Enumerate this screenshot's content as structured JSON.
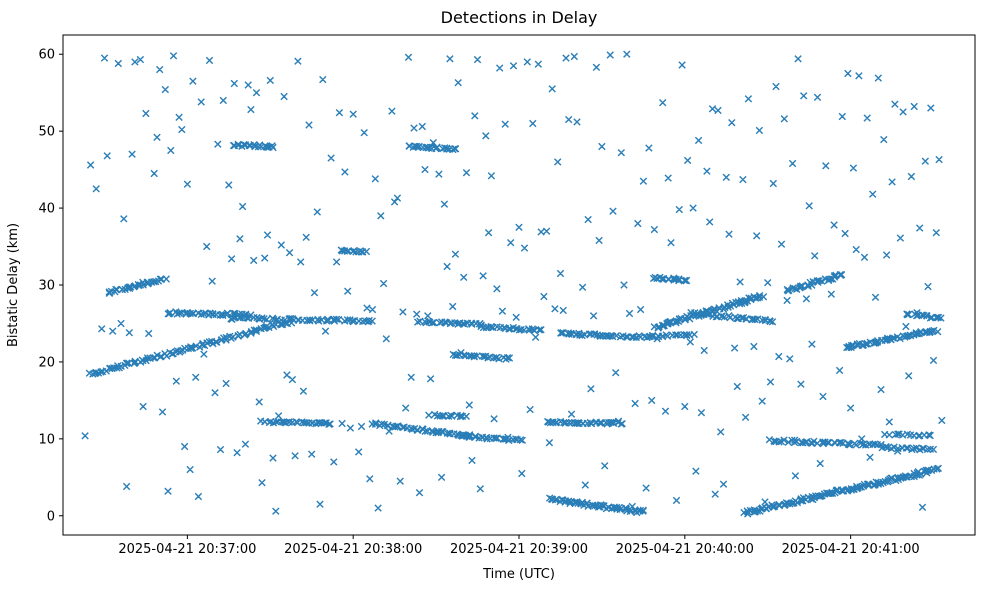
{
  "figure": {
    "title": "Detections in Delay",
    "xlabel": "Time (UTC)",
    "ylabel": "Bistatic Delay (km)"
  },
  "chart_data": {
    "type": "scatter",
    "marker": "x",
    "marker_color": "#1f77b4",
    "title": "Detections in Delay",
    "xlabel": "Time (UTC)",
    "ylabel": "Bistatic Delay (km)",
    "grid": false,
    "legend": null,
    "x_axis": {
      "unit": "seconds relative to 2025-04-21 20:36:15 UTC",
      "lim": [
        0,
        330
      ],
      "ticks": [
        45,
        105,
        165,
        225,
        285
      ],
      "tick_labels": [
        "2025-04-21 20:37:00",
        "2025-04-21 20:38:00",
        "2025-04-21 20:39:00",
        "2025-04-21 20:40:00",
        "2025-04-21 20:41:00"
      ]
    },
    "y_axis": {
      "lim": [
        -2.5,
        62.5
      ],
      "ticks": [
        0,
        10,
        20,
        30,
        40,
        50,
        60
      ]
    },
    "tracks": [
      {
        "t0": 10,
        "t1": 82,
        "d0": 18.4,
        "d1": 25.2,
        "n": 95,
        "w": 0.18
      },
      {
        "t0": 16,
        "t1": 37,
        "d0": 29.0,
        "d1": 30.9,
        "n": 32,
        "w": 0.15
      },
      {
        "t0": 38,
        "t1": 68,
        "d0": 26.4,
        "d1": 26.1,
        "n": 40,
        "w": 0.18
      },
      {
        "t0": 60,
        "t1": 112,
        "d0": 25.7,
        "d1": 25.3,
        "n": 55,
        "w": 0.15
      },
      {
        "t0": 72,
        "t1": 97,
        "d0": 12.2,
        "d1": 12.0,
        "n": 32,
        "w": 0.12
      },
      {
        "t0": 100,
        "t1": 110,
        "d0": 34.5,
        "d1": 34.3,
        "n": 12,
        "w": 0.1
      },
      {
        "t0": 62,
        "t1": 76,
        "d0": 48.2,
        "d1": 48.0,
        "n": 22,
        "w": 0.15
      },
      {
        "t0": 112,
        "t1": 147,
        "d0": 12.0,
        "d1": 10.4,
        "n": 40,
        "w": 0.15
      },
      {
        "t0": 125,
        "t1": 142,
        "d0": 48.0,
        "d1": 47.7,
        "n": 24,
        "w": 0.12
      },
      {
        "t0": 133,
        "t1": 146,
        "d0": 13.1,
        "d1": 12.9,
        "n": 15,
        "w": 0.1
      },
      {
        "t0": 129,
        "t1": 152,
        "d0": 25.2,
        "d1": 24.9,
        "n": 28,
        "w": 0.12
      },
      {
        "t0": 151,
        "t1": 173,
        "d0": 24.6,
        "d1": 24.1,
        "n": 26,
        "w": 0.12
      },
      {
        "t0": 141,
        "t1": 162,
        "d0": 20.9,
        "d1": 20.4,
        "n": 24,
        "w": 0.12
      },
      {
        "t0": 143,
        "t1": 166,
        "d0": 10.4,
        "d1": 9.8,
        "n": 26,
        "w": 0.12
      },
      {
        "t0": 175,
        "t1": 202,
        "d0": 12.2,
        "d1": 12.0,
        "n": 40,
        "w": 0.12
      },
      {
        "t0": 176,
        "t1": 210,
        "d0": 2.1,
        "d1": 0.5,
        "n": 60,
        "w": 0.2
      },
      {
        "t0": 180,
        "t1": 212,
        "d0": 23.7,
        "d1": 23.2,
        "n": 40,
        "w": 0.15
      },
      {
        "t0": 212,
        "t1": 228,
        "d0": 23.3,
        "d1": 23.6,
        "n": 18,
        "w": 0.12
      },
      {
        "t0": 214,
        "t1": 226,
        "d0": 30.9,
        "d1": 30.6,
        "n": 16,
        "w": 0.12
      },
      {
        "t0": 214,
        "t1": 253,
        "d0": 24.4,
        "d1": 28.6,
        "n": 70,
        "w": 0.2
      },
      {
        "t0": 228,
        "t1": 257,
        "d0": 26.3,
        "d1": 25.3,
        "n": 35,
        "w": 0.15
      },
      {
        "t0": 247,
        "t1": 316,
        "d0": 0.4,
        "d1": 6.0,
        "n": 130,
        "w": 0.22
      },
      {
        "t0": 256,
        "t1": 296,
        "d0": 9.8,
        "d1": 9.2,
        "n": 45,
        "w": 0.15
      },
      {
        "t0": 262,
        "t1": 282,
        "d0": 29.2,
        "d1": 31.4,
        "n": 30,
        "w": 0.18
      },
      {
        "t0": 283,
        "t1": 316,
        "d0": 21.9,
        "d1": 24.1,
        "n": 55,
        "w": 0.18
      },
      {
        "t0": 296,
        "t1": 315,
        "d0": 8.9,
        "d1": 8.6,
        "n": 20,
        "w": 0.12
      },
      {
        "t0": 298,
        "t1": 314,
        "d0": 10.6,
        "d1": 10.4,
        "n": 14,
        "w": 0.1
      },
      {
        "t0": 305,
        "t1": 318,
        "d0": 26.2,
        "d1": 25.7,
        "n": 16,
        "w": 0.12
      }
    ],
    "clutter_points": [
      [
        8,
        10.4
      ],
      [
        10,
        45.6
      ],
      [
        12,
        42.5
      ],
      [
        14,
        24.3
      ],
      [
        15,
        59.5
      ],
      [
        16,
        46.8
      ],
      [
        18,
        24.0
      ],
      [
        20,
        58.8
      ],
      [
        21,
        25.0
      ],
      [
        22,
        38.6
      ],
      [
        23,
        3.8
      ],
      [
        24,
        23.8
      ],
      [
        25,
        47.0
      ],
      [
        26,
        59.0
      ],
      [
        28,
        59.3
      ],
      [
        29,
        14.2
      ],
      [
        30,
        52.3
      ],
      [
        31,
        23.7
      ],
      [
        33,
        44.5
      ],
      [
        34,
        49.2
      ],
      [
        35,
        58.0
      ],
      [
        36,
        13.5
      ],
      [
        37,
        55.4
      ],
      [
        38,
        3.2
      ],
      [
        39,
        47.5
      ],
      [
        40,
        59.8
      ],
      [
        41,
        17.5
      ],
      [
        42,
        51.8
      ],
      [
        43,
        50.2
      ],
      [
        44,
        9.0
      ],
      [
        45,
        43.1
      ],
      [
        46,
        6.0
      ],
      [
        47,
        56.5
      ],
      [
        48,
        18.0
      ],
      [
        49,
        2.5
      ],
      [
        50,
        53.8
      ],
      [
        51,
        21.0
      ],
      [
        52,
        35.0
      ],
      [
        53,
        59.2
      ],
      [
        54,
        30.5
      ],
      [
        55,
        16.0
      ],
      [
        56,
        48.3
      ],
      [
        57,
        8.6
      ],
      [
        58,
        54.0
      ],
      [
        59,
        17.2
      ],
      [
        60,
        43.0
      ],
      [
        61,
        33.4
      ],
      [
        62,
        56.2
      ],
      [
        63,
        8.2
      ],
      [
        64,
        36.0
      ],
      [
        65,
        40.2
      ],
      [
        66,
        9.3
      ],
      [
        67,
        56.0
      ],
      [
        68,
        52.8
      ],
      [
        69,
        33.2
      ],
      [
        70,
        55.0
      ],
      [
        71,
        14.8
      ],
      [
        72,
        4.3
      ],
      [
        73,
        33.5
      ],
      [
        74,
        36.5
      ],
      [
        75,
        56.6
      ],
      [
        76,
        7.5
      ],
      [
        77,
        0.6
      ],
      [
        78,
        13.0
      ],
      [
        79,
        35.2
      ],
      [
        80,
        54.5
      ],
      [
        81,
        18.3
      ],
      [
        82,
        34.2
      ],
      [
        83,
        17.7
      ],
      [
        84,
        7.8
      ],
      [
        85,
        59.1
      ],
      [
        86,
        33.0
      ],
      [
        87,
        16.2
      ],
      [
        88,
        36.2
      ],
      [
        89,
        50.8
      ],
      [
        90,
        8.0
      ],
      [
        91,
        29.0
      ],
      [
        92,
        39.5
      ],
      [
        93,
        1.5
      ],
      [
        94,
        56.7
      ],
      [
        95,
        24.0
      ],
      [
        97,
        46.5
      ],
      [
        98,
        7.0
      ],
      [
        99,
        33.0
      ],
      [
        100,
        52.4
      ],
      [
        101,
        12.0
      ],
      [
        102,
        44.7
      ],
      [
        103,
        29.2
      ],
      [
        104,
        11.4
      ],
      [
        105,
        52.2
      ],
      [
        106,
        34.3
      ],
      [
        107,
        8.3
      ],
      [
        108,
        11.6
      ],
      [
        109,
        49.8
      ],
      [
        110,
        27.0
      ],
      [
        111,
        4.8
      ],
      [
        112,
        26.8
      ],
      [
        113,
        43.8
      ],
      [
        114,
        1.0
      ],
      [
        115,
        39.0
      ],
      [
        116,
        30.2
      ],
      [
        117,
        23.0
      ],
      [
        118,
        11.0
      ],
      [
        119,
        52.6
      ],
      [
        120,
        40.8
      ],
      [
        121,
        41.3
      ],
      [
        122,
        4.5
      ],
      [
        123,
        26.5
      ],
      [
        124,
        14.0
      ],
      [
        125,
        59.6
      ],
      [
        126,
        18.0
      ],
      [
        127,
        50.4
      ],
      [
        128,
        26.2
      ],
      [
        129,
        3.0
      ],
      [
        130,
        50.6
      ],
      [
        131,
        45.0
      ],
      [
        132,
        26.0
      ],
      [
        133,
        17.8
      ],
      [
        134,
        48.5
      ],
      [
        135,
        10.8
      ],
      [
        136,
        44.4
      ],
      [
        137,
        5.0
      ],
      [
        138,
        40.5
      ],
      [
        139,
        32.4
      ],
      [
        140,
        59.4
      ],
      [
        141,
        27.2
      ],
      [
        142,
        34.0
      ],
      [
        143,
        56.3
      ],
      [
        144,
        21.2
      ],
      [
        145,
        31.0
      ],
      [
        146,
        44.6
      ],
      [
        147,
        14.4
      ],
      [
        148,
        7.2
      ],
      [
        149,
        52.0
      ],
      [
        150,
        59.3
      ],
      [
        151,
        3.5
      ],
      [
        152,
        31.2
      ],
      [
        153,
        49.4
      ],
      [
        154,
        36.8
      ],
      [
        155,
        44.2
      ],
      [
        156,
        12.6
      ],
      [
        157,
        29.5
      ],
      [
        158,
        58.2
      ],
      [
        159,
        26.6
      ],
      [
        160,
        50.9
      ],
      [
        161,
        10.2
      ],
      [
        162,
        35.5
      ],
      [
        163,
        58.5
      ],
      [
        164,
        25.8
      ],
      [
        165,
        37.5
      ],
      [
        166,
        5.5
      ],
      [
        167,
        34.8
      ],
      [
        168,
        59.0
      ],
      [
        169,
        13.8
      ],
      [
        170,
        51.0
      ],
      [
        171,
        23.2
      ],
      [
        172,
        58.7
      ],
      [
        173,
        36.9
      ],
      [
        174,
        28.5
      ],
      [
        175,
        37.0
      ],
      [
        176,
        9.5
      ],
      [
        177,
        55.5
      ],
      [
        178,
        26.9
      ],
      [
        179,
        46.0
      ],
      [
        180,
        31.5
      ],
      [
        181,
        26.7
      ],
      [
        182,
        59.5
      ],
      [
        183,
        51.5
      ],
      [
        184,
        13.2
      ],
      [
        185,
        59.7
      ],
      [
        186,
        51.2
      ],
      [
        187,
        23.5
      ],
      [
        188,
        29.7
      ],
      [
        189,
        4.0
      ],
      [
        190,
        38.5
      ],
      [
        191,
        16.5
      ],
      [
        192,
        26.0
      ],
      [
        193,
        58.3
      ],
      [
        194,
        35.8
      ],
      [
        195,
        48.0
      ],
      [
        196,
        6.5
      ],
      [
        197,
        23.4
      ],
      [
        198,
        59.9
      ],
      [
        199,
        39.6
      ],
      [
        200,
        18.6
      ],
      [
        201,
        12.3
      ],
      [
        202,
        47.2
      ],
      [
        203,
        30.0
      ],
      [
        204,
        60.0
      ],
      [
        205,
        26.3
      ],
      [
        206,
        1.2
      ],
      [
        207,
        14.6
      ],
      [
        208,
        38.0
      ],
      [
        209,
        26.8
      ],
      [
        210,
        43.5
      ],
      [
        211,
        3.6
      ],
      [
        212,
        47.8
      ],
      [
        213,
        15.0
      ],
      [
        214,
        37.2
      ],
      [
        215,
        23.0
      ],
      [
        216,
        31.0
      ],
      [
        217,
        53.7
      ],
      [
        218,
        13.6
      ],
      [
        219,
        43.9
      ],
      [
        220,
        35.5
      ],
      [
        221,
        30.9
      ],
      [
        222,
        2.0
      ],
      [
        223,
        39.8
      ],
      [
        224,
        58.6
      ],
      [
        225,
        14.2
      ],
      [
        226,
        46.2
      ],
      [
        227,
        22.6
      ],
      [
        228,
        40.0
      ],
      [
        229,
        5.8
      ],
      [
        230,
        48.8
      ],
      [
        231,
        13.4
      ],
      [
        232,
        21.5
      ],
      [
        233,
        44.8
      ],
      [
        234,
        38.2
      ],
      [
        235,
        52.9
      ],
      [
        236,
        2.8
      ],
      [
        237,
        52.7
      ],
      [
        238,
        10.9
      ],
      [
        239,
        4.1
      ],
      [
        240,
        44.0
      ],
      [
        241,
        36.6
      ],
      [
        242,
        51.1
      ],
      [
        243,
        21.8
      ],
      [
        244,
        16.8
      ],
      [
        245,
        30.4
      ],
      [
        246,
        43.7
      ],
      [
        247,
        12.8
      ],
      [
        248,
        54.2
      ],
      [
        250,
        22.0
      ],
      [
        251,
        36.4
      ],
      [
        252,
        50.1
      ],
      [
        253,
        14.9
      ],
      [
        254,
        1.8
      ],
      [
        255,
        30.3
      ],
      [
        256,
        17.4
      ],
      [
        257,
        43.2
      ],
      [
        258,
        55.8
      ],
      [
        259,
        20.7
      ],
      [
        260,
        35.3
      ],
      [
        261,
        51.6
      ],
      [
        262,
        28.0
      ],
      [
        263,
        20.4
      ],
      [
        264,
        45.8
      ],
      [
        265,
        5.2
      ],
      [
        266,
        59.4
      ],
      [
        267,
        17.1
      ],
      [
        268,
        54.6
      ],
      [
        269,
        28.2
      ],
      [
        270,
        40.3
      ],
      [
        271,
        22.3
      ],
      [
        272,
        33.8
      ],
      [
        273,
        54.4
      ],
      [
        274,
        6.8
      ],
      [
        275,
        15.5
      ],
      [
        276,
        45.5
      ],
      [
        277,
        30.6
      ],
      [
        278,
        28.8
      ],
      [
        279,
        37.8
      ],
      [
        280,
        3.3
      ],
      [
        281,
        18.9
      ],
      [
        282,
        51.9
      ],
      [
        283,
        36.7
      ],
      [
        284,
        57.5
      ],
      [
        285,
        14.0
      ],
      [
        286,
        45.2
      ],
      [
        287,
        34.6
      ],
      [
        288,
        57.2
      ],
      [
        289,
        10.0
      ],
      [
        290,
        33.6
      ],
      [
        291,
        51.7
      ],
      [
        292,
        7.6
      ],
      [
        293,
        41.8
      ],
      [
        294,
        28.4
      ],
      [
        295,
        56.9
      ],
      [
        296,
        16.4
      ],
      [
        297,
        48.9
      ],
      [
        298,
        33.9
      ],
      [
        299,
        12.2
      ],
      [
        300,
        43.4
      ],
      [
        301,
        53.5
      ],
      [
        302,
        8.4
      ],
      [
        303,
        36.1
      ],
      [
        304,
        52.5
      ],
      [
        305,
        24.6
      ],
      [
        306,
        18.2
      ],
      [
        307,
        44.1
      ],
      [
        308,
        53.2
      ],
      [
        309,
        26.4
      ],
      [
        310,
        37.4
      ],
      [
        311,
        1.1
      ],
      [
        312,
        46.1
      ],
      [
        313,
        29.8
      ],
      [
        314,
        53.0
      ],
      [
        315,
        20.2
      ],
      [
        316,
        36.8
      ],
      [
        317,
        46.3
      ],
      [
        318,
        12.4
      ]
    ]
  }
}
